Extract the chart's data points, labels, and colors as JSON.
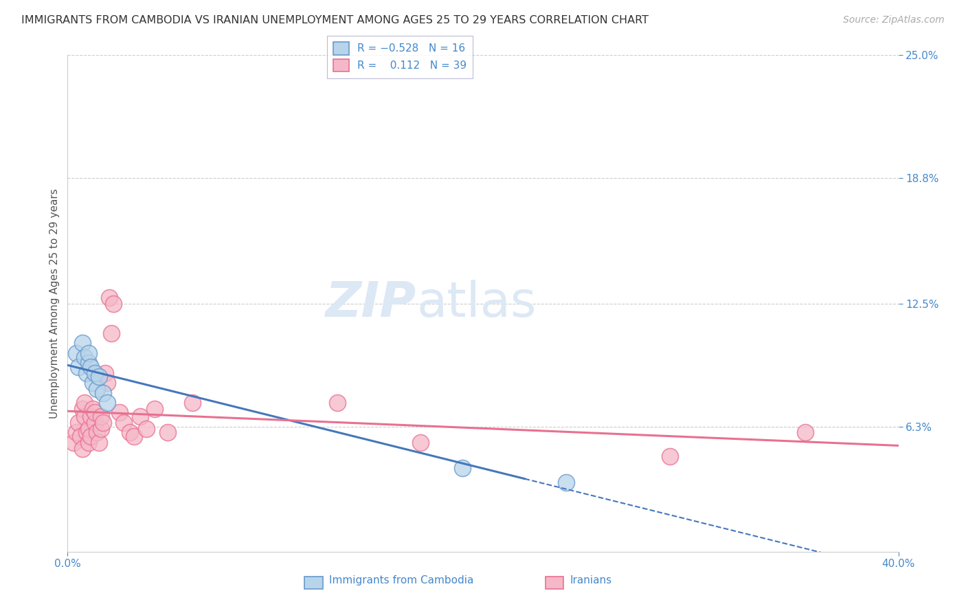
{
  "title": "IMMIGRANTS FROM CAMBODIA VS IRANIAN UNEMPLOYMENT AMONG AGES 25 TO 29 YEARS CORRELATION CHART",
  "source": "Source: ZipAtlas.com",
  "ylabel": "Unemployment Among Ages 25 to 29 years",
  "xlim": [
    0.0,
    0.4
  ],
  "ylim": [
    0.0,
    0.25
  ],
  "xtick_vals": [
    0.0,
    0.4
  ],
  "xtick_labels": [
    "0.0%",
    "40.0%"
  ],
  "ytick_vals": [
    0.25,
    0.188,
    0.125,
    0.063
  ],
  "ytick_labels": [
    "25.0%",
    "18.8%",
    "12.5%",
    "6.3%"
  ],
  "watermark_zip": "ZIP",
  "watermark_atlas": "atlas",
  "cambodia_color": "#b8d4ea",
  "iran_color": "#f5b8c8",
  "cambodia_edge": "#6699cc",
  "iran_edge": "#e87090",
  "cambodia_line_color": "#4477bb",
  "iran_line_color": "#e87090",
  "cambodia_points": [
    [
      0.004,
      0.1
    ],
    [
      0.005,
      0.093
    ],
    [
      0.007,
      0.105
    ],
    [
      0.008,
      0.098
    ],
    [
      0.009,
      0.09
    ],
    [
      0.01,
      0.095
    ],
    [
      0.01,
      0.1
    ],
    [
      0.011,
      0.093
    ],
    [
      0.012,
      0.085
    ],
    [
      0.013,
      0.09
    ],
    [
      0.014,
      0.082
    ],
    [
      0.015,
      0.088
    ],
    [
      0.017,
      0.08
    ],
    [
      0.019,
      0.075
    ],
    [
      0.19,
      0.042
    ],
    [
      0.24,
      0.035
    ]
  ],
  "iran_points": [
    [
      0.003,
      0.055
    ],
    [
      0.004,
      0.06
    ],
    [
      0.005,
      0.065
    ],
    [
      0.006,
      0.058
    ],
    [
      0.007,
      0.052
    ],
    [
      0.007,
      0.072
    ],
    [
      0.008,
      0.068
    ],
    [
      0.008,
      0.075
    ],
    [
      0.009,
      0.06
    ],
    [
      0.01,
      0.055
    ],
    [
      0.01,
      0.062
    ],
    [
      0.011,
      0.068
    ],
    [
      0.011,
      0.058
    ],
    [
      0.012,
      0.072
    ],
    [
      0.013,
      0.065
    ],
    [
      0.013,
      0.07
    ],
    [
      0.014,
      0.06
    ],
    [
      0.015,
      0.055
    ],
    [
      0.016,
      0.062
    ],
    [
      0.016,
      0.068
    ],
    [
      0.017,
      0.065
    ],
    [
      0.018,
      0.09
    ],
    [
      0.019,
      0.085
    ],
    [
      0.02,
      0.128
    ],
    [
      0.021,
      0.11
    ],
    [
      0.022,
      0.125
    ],
    [
      0.025,
      0.07
    ],
    [
      0.027,
      0.065
    ],
    [
      0.03,
      0.06
    ],
    [
      0.032,
      0.058
    ],
    [
      0.035,
      0.068
    ],
    [
      0.038,
      0.062
    ],
    [
      0.042,
      0.072
    ],
    [
      0.048,
      0.06
    ],
    [
      0.06,
      0.075
    ],
    [
      0.13,
      0.075
    ],
    [
      0.17,
      0.055
    ],
    [
      0.29,
      0.048
    ],
    [
      0.355,
      0.06
    ]
  ],
  "title_fontsize": 11.5,
  "source_fontsize": 10,
  "label_fontsize": 11,
  "tick_fontsize": 11,
  "watermark_fontsize": 52,
  "background_color": "#ffffff",
  "grid_color": "#cccccc",
  "title_color": "#333333",
  "axis_label_color": "#555555",
  "tick_color": "#4488cc",
  "watermark_zip_color": "#dde8f5",
  "watermark_atlas_color": "#dde8f5"
}
